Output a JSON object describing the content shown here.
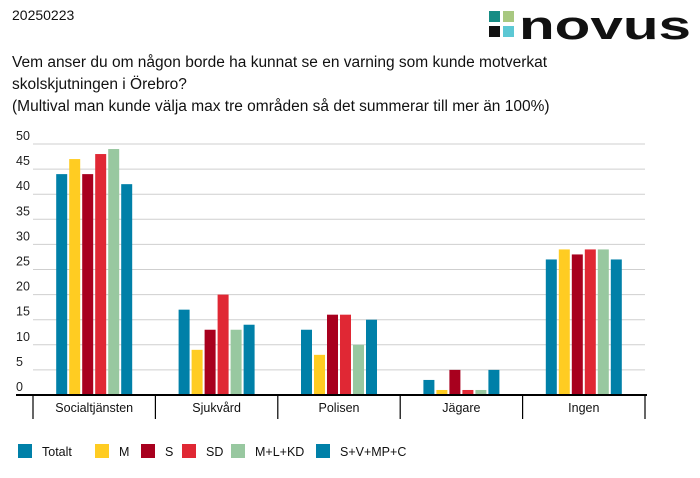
{
  "date": "20250223",
  "logo_text": "novus",
  "question_line1": "Vem anser du om någon borde ha kunnat se en varning som kunde motverkat skolskjutningen i Örebro?",
  "question_line2": "(Multival man kunde välja max tre områden så det summerar till mer än 100%)",
  "chart_data": {
    "type": "bar",
    "title": "Vem anser du om någon borde ha kunnat se en varning som kunde motverkat skolskjutningen i Örebro?",
    "categories": [
      "Socialtjänsten",
      "Sjukvård",
      "Polisen",
      "Jägare",
      "Ingen"
    ],
    "ylim": [
      0,
      50
    ],
    "yticks": [
      0,
      5,
      10,
      15,
      20,
      25,
      30,
      35,
      40,
      45,
      50
    ],
    "grid": true,
    "legend_position": "bottom",
    "xlabel": "",
    "ylabel": "",
    "series": [
      {
        "name": "Totalt",
        "color": "#0080A8",
        "values": [
          44,
          17,
          13,
          3,
          27
        ]
      },
      {
        "name": "M",
        "color": "#FFCC22",
        "values": [
          47,
          9,
          8,
          1,
          29
        ]
      },
      {
        "name": "S",
        "color": "#A8001E",
        "values": [
          44,
          13,
          16,
          5,
          28
        ]
      },
      {
        "name": "SD",
        "color": "#E02834",
        "values": [
          48,
          20,
          16,
          1,
          29
        ]
      },
      {
        "name": "M+L+KD",
        "color": "#98C8A0",
        "values": [
          49,
          13,
          10,
          1,
          29
        ]
      },
      {
        "name": "S+V+MP+C",
        "color": "#0080A8",
        "values": [
          42,
          14,
          15,
          5,
          27
        ]
      }
    ]
  }
}
